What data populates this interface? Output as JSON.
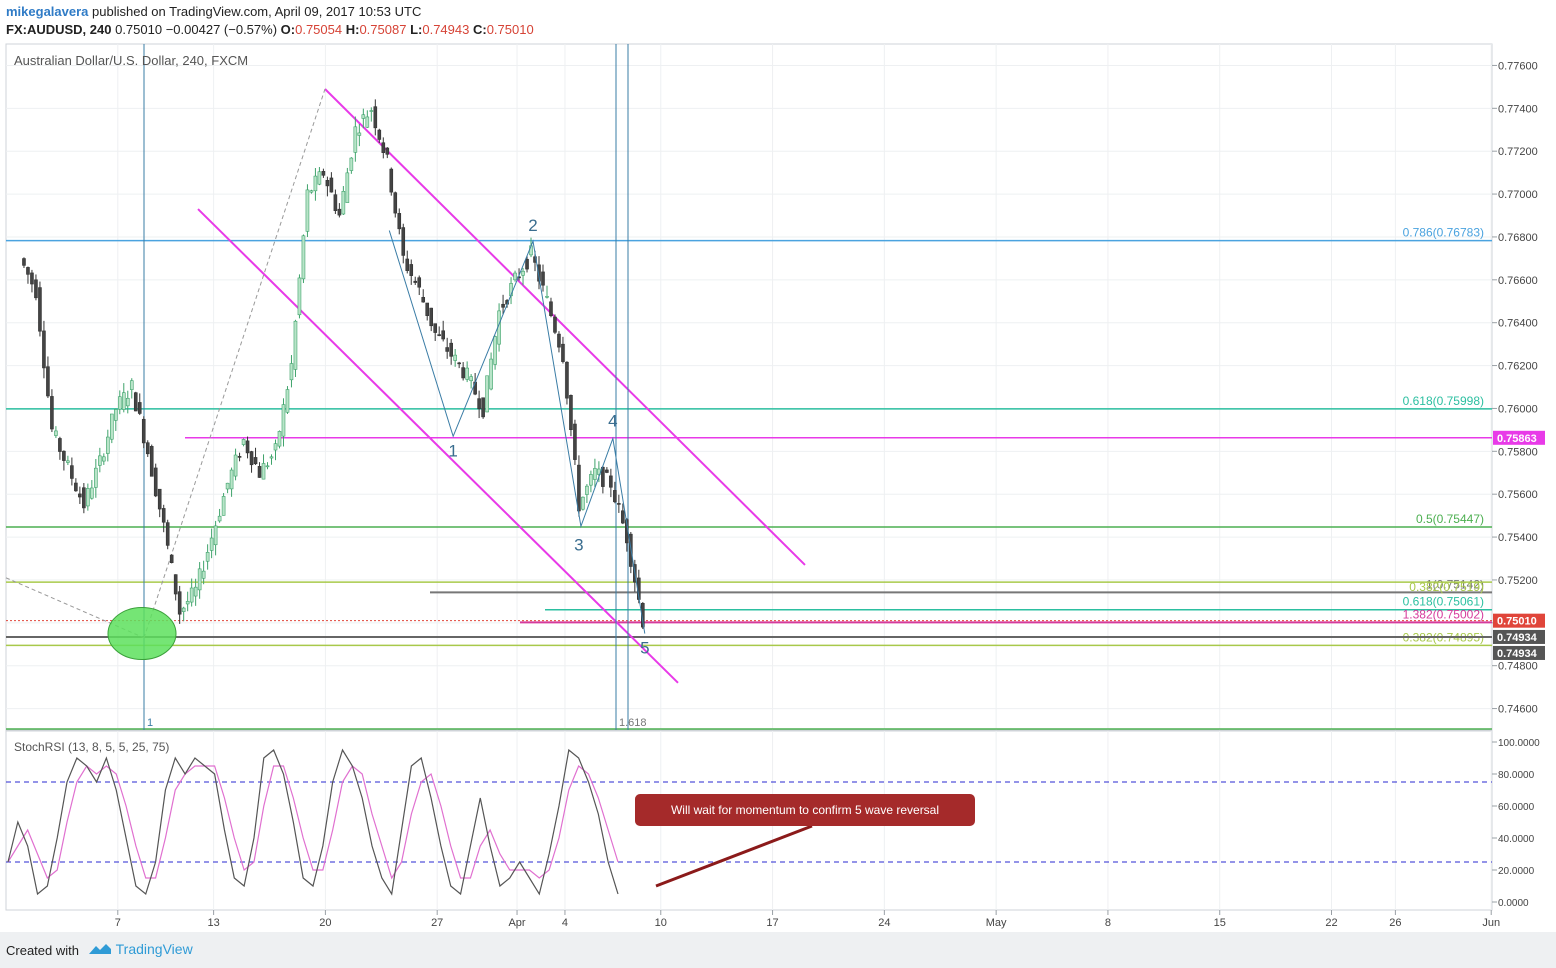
{
  "header": {
    "author": "mikegalavera",
    "published": "published on TradingView.com, April 09, 2017 10:53 UTC",
    "symbol": "FX:AUDUSD, 240",
    "last": "0.75010",
    "change": "−0.00427 (−0.57%)",
    "o_label": "O:",
    "o": "0.75054",
    "h_label": "H:",
    "h": "0.75087",
    "l_label": "L:",
    "l": "0.74943",
    "c_label": "C:",
    "c": "0.75010"
  },
  "chart_data": {
    "type": "candlestick",
    "title": "Australian Dollar/U.S. Dollar, 240, FXCM",
    "ylim": [
      0.745,
      0.777
    ],
    "y_ticks": [
      "0.77600",
      "0.77400",
      "0.77200",
      "0.77000",
      "0.76800",
      "0.76600",
      "0.76400",
      "0.76200",
      "0.76000",
      "0.75800",
      "0.75600",
      "0.75400",
      "0.75200",
      "0.75000",
      "0.74800",
      "0.74600"
    ],
    "x_ticks": [
      "7",
      "13",
      "20",
      "27",
      "Apr",
      "4",
      "10",
      "17",
      "24",
      "May",
      "8",
      "15",
      "22",
      "26",
      "Jun"
    ],
    "price_path": [
      {
        "date": "2017-03-01",
        "price": 0.767
      },
      {
        "date": "2017-03-02",
        "price": 0.7655
      },
      {
        "date": "2017-03-03",
        "price": 0.759
      },
      {
        "date": "2017-03-05",
        "price": 0.7555
      },
      {
        "date": "2017-03-06",
        "price": 0.7575
      },
      {
        "date": "2017-03-07",
        "price": 0.76
      },
      {
        "date": "2017-03-08",
        "price": 0.761
      },
      {
        "date": "2017-03-09",
        "price": 0.758
      },
      {
        "date": "2017-03-10",
        "price": 0.7545
      },
      {
        "date": "2017-03-11",
        "price": 0.7505
      },
      {
        "date": "2017-03-12",
        "price": 0.7515
      },
      {
        "date": "2017-03-13",
        "price": 0.754
      },
      {
        "date": "2017-03-14",
        "price": 0.7565
      },
      {
        "date": "2017-03-15",
        "price": 0.7585
      },
      {
        "date": "2017-03-16",
        "price": 0.757
      },
      {
        "date": "2017-03-17",
        "price": 0.758
      },
      {
        "date": "2017-03-18",
        "price": 0.762
      },
      {
        "date": "2017-03-19",
        "price": 0.77
      },
      {
        "date": "2017-03-20",
        "price": 0.771
      },
      {
        "date": "2017-03-21",
        "price": 0.769
      },
      {
        "date": "2017-03-22",
        "price": 0.773
      },
      {
        "date": "2017-03-23",
        "price": 0.774
      },
      {
        "date": "2017-03-24",
        "price": 0.7715
      },
      {
        "date": "2017-03-25",
        "price": 0.767
      },
      {
        "date": "2017-03-26",
        "price": 0.7655
      },
      {
        "date": "2017-03-27",
        "price": 0.7635
      },
      {
        "date": "2017-03-28",
        "price": 0.7625
      },
      {
        "date": "2017-03-29",
        "price": 0.7615
      },
      {
        "date": "2017-03-30",
        "price": 0.76
      },
      {
        "date": "2017-03-31",
        "price": 0.7645
      },
      {
        "date": "2017-04-01",
        "price": 0.766
      },
      {
        "date": "2017-04-02",
        "price": 0.7672
      },
      {
        "date": "2017-04-03",
        "price": 0.765
      },
      {
        "date": "2017-04-04",
        "price": 0.7625
      },
      {
        "date": "2017-04-05",
        "price": 0.7555
      },
      {
        "date": "2017-04-06",
        "price": 0.757
      },
      {
        "date": "2017-04-07",
        "price": 0.7565
      },
      {
        "date": "2017-04-08",
        "price": 0.754
      },
      {
        "date": "2017-04-09",
        "price": 0.7501
      }
    ],
    "horizontal_levels": [
      {
        "label": "0.786(0.76783)",
        "price": 0.76783,
        "color": "#4aa3df"
      },
      {
        "label": "0.618(0.75998)",
        "price": 0.75998,
        "color": "#2bbfa0"
      },
      {
        "label": "0.5(0.75447)",
        "price": 0.75447,
        "color": "#4caf50"
      },
      {
        "label": "1(0.75142)",
        "price": 0.75142,
        "color": "#777777"
      },
      {
        "label": "0.382(0.7519)",
        "price": 0.7519,
        "color": "#a8c94a"
      },
      {
        "label": "0.618(0.75061)",
        "price": 0.75061,
        "color": "#2bbfa0"
      },
      {
        "label": "1.382(0.75002)",
        "price": 0.75002,
        "color": "#d63b9c"
      },
      {
        "label": "0.382(0.74895)",
        "price": 0.74895,
        "color": "#a8c94a"
      }
    ],
    "level_0_75863": 0.75863,
    "price_badges": [
      {
        "label": "0.75863",
        "price": 0.75863,
        "color": "#e83ae8"
      },
      {
        "label": "0.75010",
        "price": 0.7501,
        "color": "#e0453a"
      },
      {
        "label": "0.74934",
        "price": 0.74934,
        "color": "#555555"
      },
      {
        "label": "0.74934",
        "price": 0.74934,
        "color": "#555555"
      }
    ],
    "waves": [
      {
        "label": "1",
        "date": "2017-03-28",
        "price": 0.7587
      },
      {
        "label": "2",
        "date": "2017-04-02",
        "price": 0.7678
      },
      {
        "label": "3",
        "date": "2017-04-05",
        "price": 0.7545
      },
      {
        "label": "4",
        "date": "2017-04-07",
        "price": 0.7586
      },
      {
        "label": "5",
        "date": "2017-04-09",
        "price": 0.7495
      }
    ],
    "fib_time_labels": [
      "1",
      "1.618"
    ],
    "indicator": {
      "name": "StochRSI (13, 8, 5, 5, 25, 75)",
      "ylim": [
        0,
        100
      ],
      "y_ticks": [
        "100.0000",
        "80.0000",
        "60.0000",
        "40.0000",
        "20.0000",
        "0.0000"
      ],
      "levels": [
        75,
        25
      ],
      "k_color": "#555555",
      "d_color": "#e070d0",
      "k": [
        25,
        50,
        35,
        5,
        10,
        40,
        75,
        90,
        85,
        75,
        90,
        70,
        40,
        10,
        5,
        25,
        70,
        90,
        80,
        90,
        85,
        80,
        45,
        15,
        10,
        40,
        90,
        95,
        80,
        50,
        15,
        10,
        35,
        75,
        95,
        85,
        65,
        35,
        15,
        5,
        45,
        85,
        90,
        65,
        35,
        10,
        5,
        35,
        65,
        35,
        10,
        15,
        25,
        15,
        5,
        30,
        60,
        95,
        90,
        75,
        55,
        25,
        5
      ],
      "d": [
        25,
        35,
        45,
        30,
        15,
        20,
        50,
        75,
        85,
        80,
        85,
        80,
        60,
        35,
        15,
        15,
        40,
        70,
        80,
        85,
        85,
        85,
        65,
        40,
        20,
        25,
        60,
        85,
        85,
        65,
        40,
        20,
        20,
        45,
        75,
        85,
        80,
        55,
        35,
        15,
        25,
        55,
        75,
        80,
        60,
        35,
        15,
        15,
        35,
        45,
        30,
        20,
        20,
        20,
        15,
        20,
        40,
        70,
        85,
        80,
        65,
        45,
        25
      ],
      "annotation": "Will wait for momentum to confirm 5 wave reversal"
    }
  },
  "footer": {
    "created_with": "Created with",
    "brand": "TradingView"
  }
}
